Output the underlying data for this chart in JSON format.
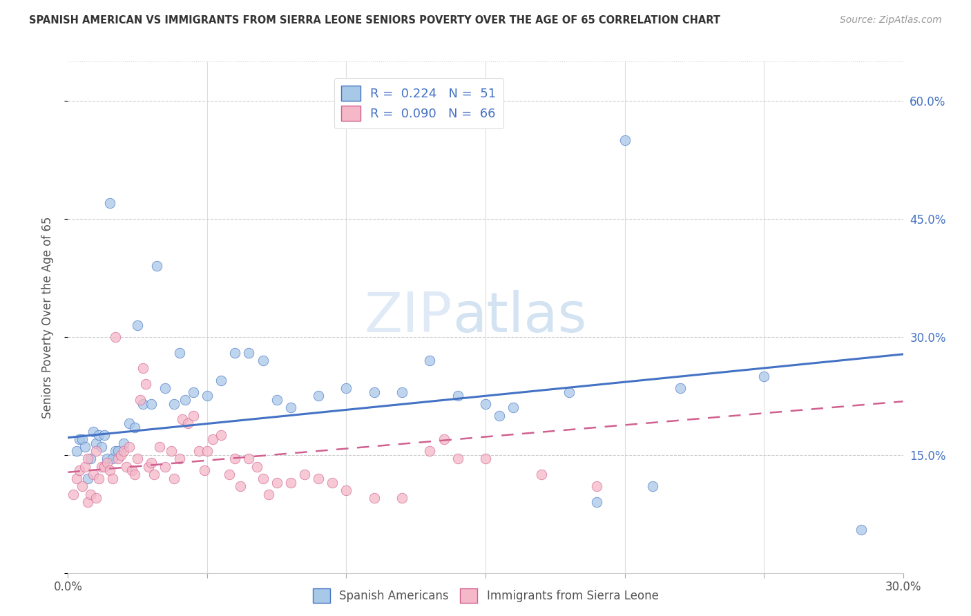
{
  "title": "SPANISH AMERICAN VS IMMIGRANTS FROM SIERRA LEONE SENIORS POVERTY OVER THE AGE OF 65 CORRELATION CHART",
  "source": "Source: ZipAtlas.com",
  "ylabel": "Seniors Poverty Over the Age of 65",
  "xlabel": "",
  "legend_bottom": [
    "Spanish Americans",
    "Immigrants from Sierra Leone"
  ],
  "R_blue": 0.224,
  "N_blue": 51,
  "R_pink": 0.09,
  "N_pink": 66,
  "xlim": [
    0.0,
    0.3
  ],
  "ylim": [
    0.0,
    0.65
  ],
  "blue_color": "#a8c8e8",
  "pink_color": "#f4b8c8",
  "line_blue": "#4472c4",
  "line_pink": "#d06090",
  "watermark_zip": "ZIP",
  "watermark_atlas": "atlas",
  "blue_line_start_y": 0.172,
  "blue_line_end_y": 0.278,
  "pink_line_start_y": 0.128,
  "pink_line_end_y": 0.218,
  "blue_scatter_x": [
    0.003,
    0.004,
    0.005,
    0.006,
    0.007,
    0.008,
    0.009,
    0.01,
    0.011,
    0.012,
    0.013,
    0.014,
    0.015,
    0.016,
    0.017,
    0.018,
    0.02,
    0.022,
    0.024,
    0.025,
    0.027,
    0.03,
    0.032,
    0.035,
    0.038,
    0.04,
    0.042,
    0.045,
    0.05,
    0.055,
    0.06,
    0.065,
    0.07,
    0.075,
    0.08,
    0.09,
    0.1,
    0.11,
    0.12,
    0.13,
    0.14,
    0.15,
    0.155,
    0.16,
    0.18,
    0.19,
    0.2,
    0.21,
    0.22,
    0.25,
    0.285
  ],
  "blue_scatter_y": [
    0.155,
    0.17,
    0.17,
    0.16,
    0.12,
    0.145,
    0.18,
    0.165,
    0.175,
    0.16,
    0.175,
    0.145,
    0.47,
    0.145,
    0.155,
    0.155,
    0.165,
    0.19,
    0.185,
    0.315,
    0.215,
    0.215,
    0.39,
    0.235,
    0.215,
    0.28,
    0.22,
    0.23,
    0.225,
    0.245,
    0.28,
    0.28,
    0.27,
    0.22,
    0.21,
    0.225,
    0.235,
    0.23,
    0.23,
    0.27,
    0.225,
    0.215,
    0.2,
    0.21,
    0.23,
    0.09,
    0.55,
    0.11,
    0.235,
    0.25,
    0.055
  ],
  "pink_scatter_x": [
    0.002,
    0.003,
    0.004,
    0.005,
    0.006,
    0.007,
    0.007,
    0.008,
    0.009,
    0.01,
    0.01,
    0.011,
    0.012,
    0.013,
    0.014,
    0.015,
    0.016,
    0.017,
    0.018,
    0.019,
    0.02,
    0.021,
    0.022,
    0.023,
    0.024,
    0.025,
    0.026,
    0.027,
    0.028,
    0.029,
    0.03,
    0.031,
    0.033,
    0.035,
    0.037,
    0.038,
    0.04,
    0.041,
    0.043,
    0.045,
    0.047,
    0.049,
    0.05,
    0.052,
    0.055,
    0.058,
    0.06,
    0.062,
    0.065,
    0.068,
    0.07,
    0.072,
    0.075,
    0.08,
    0.085,
    0.09,
    0.095,
    0.1,
    0.11,
    0.12,
    0.13,
    0.135,
    0.14,
    0.15,
    0.17,
    0.19
  ],
  "pink_scatter_y": [
    0.1,
    0.12,
    0.13,
    0.11,
    0.135,
    0.145,
    0.09,
    0.1,
    0.125,
    0.155,
    0.095,
    0.12,
    0.135,
    0.135,
    0.14,
    0.13,
    0.12,
    0.3,
    0.145,
    0.15,
    0.155,
    0.135,
    0.16,
    0.13,
    0.125,
    0.145,
    0.22,
    0.26,
    0.24,
    0.135,
    0.14,
    0.125,
    0.16,
    0.135,
    0.155,
    0.12,
    0.145,
    0.195,
    0.19,
    0.2,
    0.155,
    0.13,
    0.155,
    0.17,
    0.175,
    0.125,
    0.145,
    0.11,
    0.145,
    0.135,
    0.12,
    0.1,
    0.115,
    0.115,
    0.125,
    0.12,
    0.115,
    0.105,
    0.095,
    0.095,
    0.155,
    0.17,
    0.145,
    0.145,
    0.125,
    0.11
  ]
}
